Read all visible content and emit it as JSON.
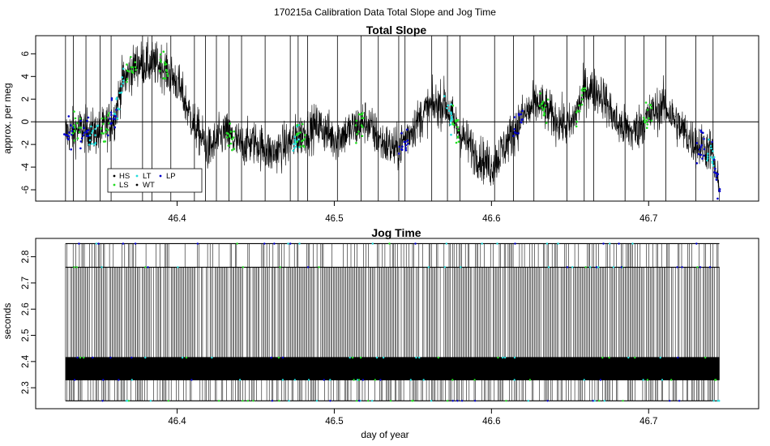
{
  "title": "170215a   Calibration Data Total Slope and Jog Time",
  "xlabel": "day of year",
  "colors": {
    "HS": "#000000",
    "LS": "#22dd22",
    "LT": "#22dddd",
    "WT": "#000000",
    "LP": "#0000cc"
  },
  "chart_data": [
    {
      "type": "line",
      "title": "Total Slope",
      "ylabel": "approx. per meg",
      "xlabel": "",
      "xlim": [
        46.31,
        46.77
      ],
      "ylim": [
        -7,
        7.6
      ],
      "x_ticks": [
        46.4,
        46.5,
        46.6,
        46.7
      ],
      "y_ticks": [
        -6,
        -4,
        -2,
        0,
        2,
        4,
        6
      ],
      "grid": false,
      "hline": 0,
      "legend": {
        "placement": "bottom-left",
        "entries": [
          {
            "label": "HS",
            "color": "#000000"
          },
          {
            "label": "LT",
            "color": "#22dddd"
          },
          {
            "label": "LP",
            "color": "#0000cc"
          },
          {
            "label": "LS",
            "color": "#22dd22"
          },
          {
            "label": "WT",
            "color": "#000000"
          }
        ]
      },
      "series": [
        {
          "x": [
            46.329,
            46.34,
            46.35,
            46.36,
            46.365,
            46.375,
            46.39,
            46.4,
            46.41,
            46.42,
            46.43,
            46.44,
            46.45,
            46.46,
            46.47,
            46.48,
            46.49,
            46.5,
            46.51,
            46.52,
            46.53,
            46.54,
            46.55,
            46.56,
            46.57,
            46.58,
            46.59,
            46.6,
            46.61,
            46.62,
            46.63,
            46.64,
            46.65,
            46.66,
            46.67,
            46.68,
            46.69,
            46.7,
            46.71,
            46.72,
            46.73,
            46.74,
            46.745
          ],
          "values": [
            -1.0,
            -0.6,
            -1.0,
            0.3,
            3.5,
            5.2,
            5.0,
            3.5,
            0.0,
            -2.5,
            -1.0,
            -2.0,
            -1.8,
            -2.8,
            -2.0,
            -1.0,
            -0.3,
            -1.5,
            -0.8,
            0.1,
            -1.8,
            -2.5,
            -0.5,
            1.2,
            1.7,
            -1.0,
            -2.8,
            -4.0,
            -1.8,
            0.5,
            1.7,
            0.3,
            -0.5,
            3.0,
            2.5,
            -0.2,
            -1.0,
            0.5,
            1.5,
            -0.5,
            -2.0,
            -2.5,
            -6.3
          ]
        }
      ]
    },
    {
      "type": "line",
      "title": "Jog Time",
      "ylabel": "seconds",
      "xlabel": "day of year",
      "xlim": [
        46.31,
        46.77
      ],
      "ylim": [
        2.22,
        2.87
      ],
      "x_ticks": [
        46.4,
        46.5,
        46.6,
        46.7
      ],
      "y_ticks": [
        2.3,
        2.4,
        2.5,
        2.6,
        2.7,
        2.8
      ],
      "grid": false,
      "levels": [
        2.25,
        2.33,
        2.415,
        2.76,
        2.85
      ],
      "series": [
        {
          "name": "jog time",
          "x": [
            46.329,
            46.745
          ]
        }
      ]
    }
  ]
}
